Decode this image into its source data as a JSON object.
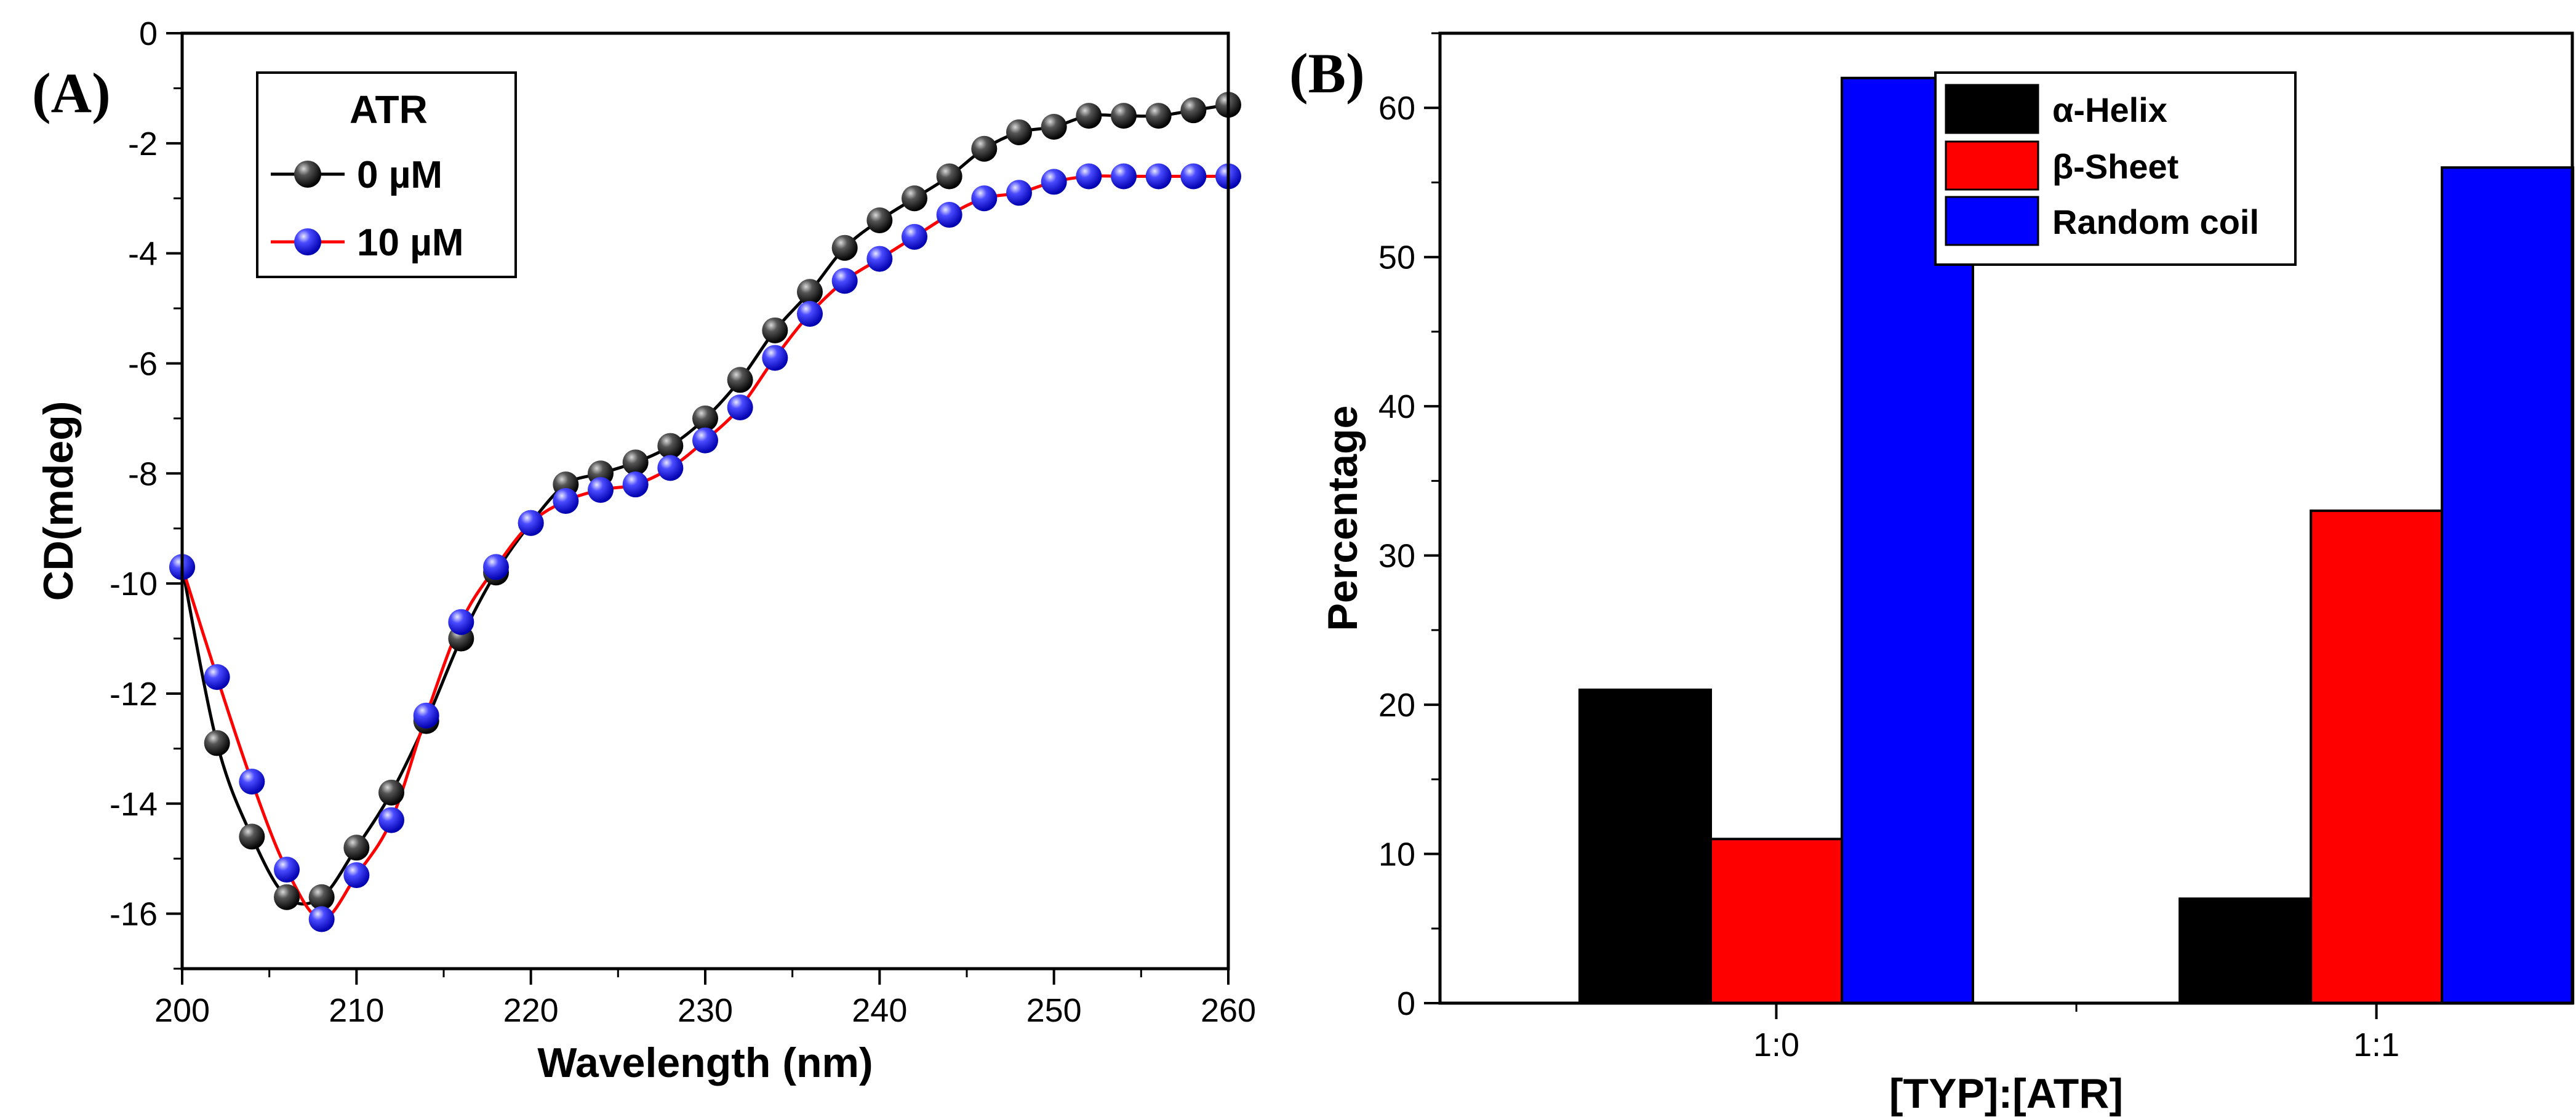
{
  "panel_labels": {
    "a": "(A)",
    "b": "(B)"
  },
  "chart_data": [
    {
      "type": "line",
      "xlabel": "Wavelength (nm)",
      "ylabel": "CD(mdeg)",
      "xlim": [
        200,
        260
      ],
      "ylim": [
        -17,
        0
      ],
      "xticks": [
        200,
        210,
        220,
        230,
        240,
        250,
        260
      ],
      "yticks": [
        0,
        -2,
        -4,
        -6,
        -8,
        -10,
        -12,
        -14,
        -16
      ],
      "legend": {
        "title": "ATR",
        "placement": "top-left",
        "box": true
      },
      "x": [
        200,
        202,
        204,
        206,
        208,
        210,
        212,
        214,
        216,
        218,
        220,
        222,
        224,
        226,
        228,
        230,
        232,
        234,
        236,
        238,
        240,
        242,
        244,
        246,
        248,
        250,
        252,
        254,
        256,
        258,
        260
      ],
      "series": [
        {
          "name": "0 µM",
          "marker_color": "#1a1a1a",
          "line_color": "#000000",
          "values": [
            -9.7,
            -12.9,
            -14.6,
            -15.7,
            -15.7,
            -14.8,
            -13.8,
            -12.5,
            -11.0,
            -9.8,
            -8.9,
            -8.2,
            -8.0,
            -7.8,
            -7.5,
            -7.0,
            -6.3,
            -5.4,
            -4.7,
            -3.9,
            -3.4,
            -3.0,
            -2.6,
            -2.1,
            -1.8,
            -1.7,
            -1.5,
            -1.5,
            -1.5,
            -1.4,
            -1.3
          ]
        },
        {
          "name": "10 µM",
          "marker_color": "#2020ff",
          "line_color": "#ff0000",
          "values": [
            -9.7,
            -11.7,
            -13.6,
            -15.2,
            -16.1,
            -15.3,
            -14.3,
            -12.4,
            -10.7,
            -9.7,
            -8.9,
            -8.5,
            -8.3,
            -8.2,
            -7.9,
            -7.4,
            -6.8,
            -5.9,
            -5.1,
            -4.5,
            -4.1,
            -3.7,
            -3.3,
            -3.0,
            -2.9,
            -2.7,
            -2.6,
            -2.6,
            -2.6,
            -2.6,
            -2.6
          ]
        }
      ]
    },
    {
      "type": "bar",
      "xlabel": "[TYP]:[ATR]",
      "ylabel": "Percentage",
      "ylim": [
        0,
        65
      ],
      "yticks": [
        0,
        10,
        20,
        30,
        40,
        50,
        60
      ],
      "categories": [
        "1:0",
        "1:1"
      ],
      "legend": {
        "placement": "top-right",
        "box": true
      },
      "series": [
        {
          "name": "α-Helix",
          "color": "#000000",
          "values": [
            21,
            7
          ]
        },
        {
          "name": "β-Sheet",
          "color": "#ff0000",
          "values": [
            11,
            33
          ]
        },
        {
          "name": "Random coil",
          "color": "#0000ff",
          "values": [
            62,
            56
          ]
        }
      ]
    }
  ]
}
